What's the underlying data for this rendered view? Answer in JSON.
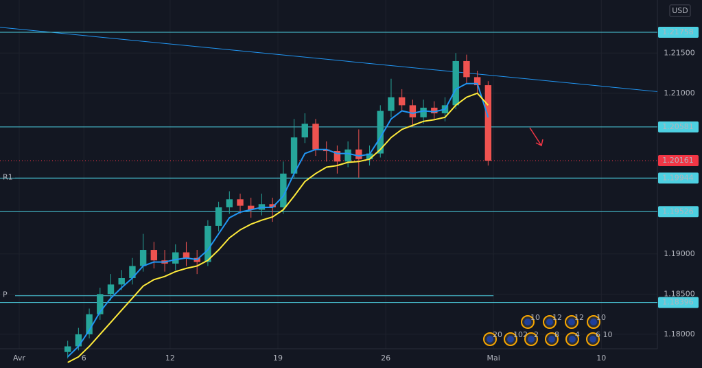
{
  "chart_data": {
    "type": "candlestick",
    "currency": "USD",
    "xlim": [
      -0.89,
      29.6
    ],
    "ylim": [
      1.1782,
      1.2216
    ],
    "grid": true,
    "xticks": [
      {
        "value": 0,
        "label": "Avr"
      },
      {
        "value": 3,
        "label": "6"
      },
      {
        "value": 7,
        "label": "12"
      },
      {
        "value": 12,
        "label": "19"
      },
      {
        "value": 17,
        "label": "26"
      },
      {
        "value": 22,
        "label": "Mai"
      },
      {
        "value": 27,
        "label": "10"
      }
    ],
    "yticks": [
      {
        "value": 1.18,
        "label": "1.18000"
      },
      {
        "value": 1.185,
        "label": "1.18500"
      },
      {
        "value": 1.19,
        "label": "1.19000"
      },
      {
        "value": 1.21,
        "label": "1.21000"
      },
      {
        "value": 1.215,
        "label": "1.21500"
      }
    ],
    "x": [
      2.25,
      2.75,
      3.25,
      3.75,
      4.25,
      4.75,
      5.25,
      5.75,
      6.25,
      6.75,
      7.25,
      7.75,
      8.25,
      8.75,
      9.25,
      9.75,
      10.25,
      10.75,
      11.25,
      11.75,
      12.25,
      12.75,
      13.25,
      13.75,
      14.25,
      14.75,
      15.25,
      15.75,
      16.25,
      16.75,
      17.25,
      17.75,
      18.25,
      18.75,
      19.25,
      19.75,
      20.25,
      20.75,
      21.25,
      21.75
    ],
    "open": [
      1.1778,
      1.1785,
      1.18,
      1.1825,
      1.185,
      1.1862,
      1.187,
      1.1885,
      1.1905,
      1.1892,
      1.1888,
      1.1902,
      1.1895,
      1.189,
      1.1935,
      1.1958,
      1.1968,
      1.196,
      1.1955,
      1.1962,
      1.1958,
      1.2,
      1.2045,
      1.2062,
      1.203,
      1.2028,
      1.2015,
      1.203,
      1.2018,
      1.2025,
      1.2078,
      1.2095,
      1.2085,
      1.207,
      1.2082,
      1.2075,
      1.2085,
      1.214,
      1.212,
      1.211
    ],
    "high": [
      1.1792,
      1.1808,
      1.1832,
      1.1858,
      1.1875,
      1.188,
      1.1895,
      1.1925,
      1.1915,
      1.1905,
      1.1912,
      1.1915,
      1.1905,
      1.1942,
      1.1965,
      1.1978,
      1.1975,
      1.197,
      1.1975,
      1.197,
      1.2015,
      1.2068,
      1.2075,
      1.2068,
      1.204,
      1.2035,
      1.204,
      1.2055,
      1.2035,
      1.2085,
      1.2118,
      1.2105,
      1.2092,
      1.2092,
      1.209,
      1.2095,
      1.215,
      1.2148,
      1.2128,
      1.2115
    ],
    "low": [
      1.177,
      1.178,
      1.1795,
      1.1818,
      1.1842,
      1.1855,
      1.1862,
      1.1878,
      1.1882,
      1.1878,
      1.188,
      1.1885,
      1.1875,
      1.1885,
      1.1928,
      1.195,
      1.195,
      1.1945,
      1.1948,
      1.194,
      1.195,
      1.1995,
      1.2038,
      1.2022,
      1.2015,
      1.2,
      1.2008,
      1.1995,
      1.201,
      1.202,
      1.207,
      1.2078,
      1.2058,
      1.2062,
      1.2068,
      1.2065,
      1.208,
      1.2112,
      1.21,
      1.201
    ],
    "close": [
      1.1785,
      1.18,
      1.1825,
      1.185,
      1.1862,
      1.187,
      1.1885,
      1.1905,
      1.1892,
      1.1888,
      1.1902,
      1.1895,
      1.189,
      1.1935,
      1.1958,
      1.1968,
      1.196,
      1.1955,
      1.1962,
      1.1958,
      1.2,
      1.2045,
      1.2062,
      1.203,
      1.2028,
      1.2015,
      1.203,
      1.2018,
      1.2025,
      1.2078,
      1.2095,
      1.2085,
      1.207,
      1.2082,
      1.2075,
      1.2085,
      1.214,
      1.212,
      1.211,
      1.2016
    ],
    "up_color": "#26a69a",
    "down_color": "#ef5350",
    "lines": [
      {
        "color": "#2196f3",
        "values": [
          1.1772,
          1.1785,
          1.1805,
          1.1828,
          1.1845,
          1.1858,
          1.187,
          1.1885,
          1.189,
          1.189,
          1.1893,
          1.1895,
          1.1893,
          1.1905,
          1.1925,
          1.1945,
          1.1952,
          1.1955,
          1.1958,
          1.1958,
          1.1972,
          1.2,
          1.2025,
          1.203,
          1.203,
          1.2025,
          1.2025,
          1.2022,
          1.2024,
          1.2045,
          1.2068,
          1.2078,
          1.2075,
          1.2078,
          1.2077,
          1.208,
          1.2105,
          1.2112,
          1.2112,
          1.207
        ]
      },
      {
        "color": "#ffeb3b",
        "values": [
          1.1765,
          1.1772,
          1.1785,
          1.18,
          1.1815,
          1.183,
          1.1845,
          1.186,
          1.1868,
          1.1872,
          1.1878,
          1.1882,
          1.1885,
          1.1892,
          1.1905,
          1.192,
          1.193,
          1.1937,
          1.1942,
          1.1946,
          1.1955,
          1.1972,
          1.199,
          1.2,
          1.2008,
          1.201,
          1.2014,
          1.2015,
          1.2018,
          1.203,
          1.2045,
          1.2055,
          1.206,
          1.2065,
          1.2067,
          1.207,
          1.2085,
          1.2095,
          1.21,
          1.2085
        ]
      }
    ],
    "trendline": {
      "color": "#2196f3",
      "x": [
        -0.89,
        29.6
      ],
      "values": [
        1.2182,
        1.2102
      ]
    },
    "level_color": "#4dd0e1",
    "levels": [
      1.21758,
      1.20581,
      1.19944,
      1.19526,
      1.18396
    ],
    "current_price": 1.20161,
    "current_color": "#f23645",
    "pivots": [
      {
        "label": "R1",
        "value": 1.19944,
        "x_end": 29.6
      },
      {
        "label": "P",
        "value": 1.1848,
        "x_end": 22
      }
    ],
    "events": {
      "top": [
        "10",
        "12",
        "12",
        "10"
      ],
      "bottom": [
        "20",
        "102",
        "2",
        "8",
        "4",
        "6 10"
      ]
    }
  }
}
